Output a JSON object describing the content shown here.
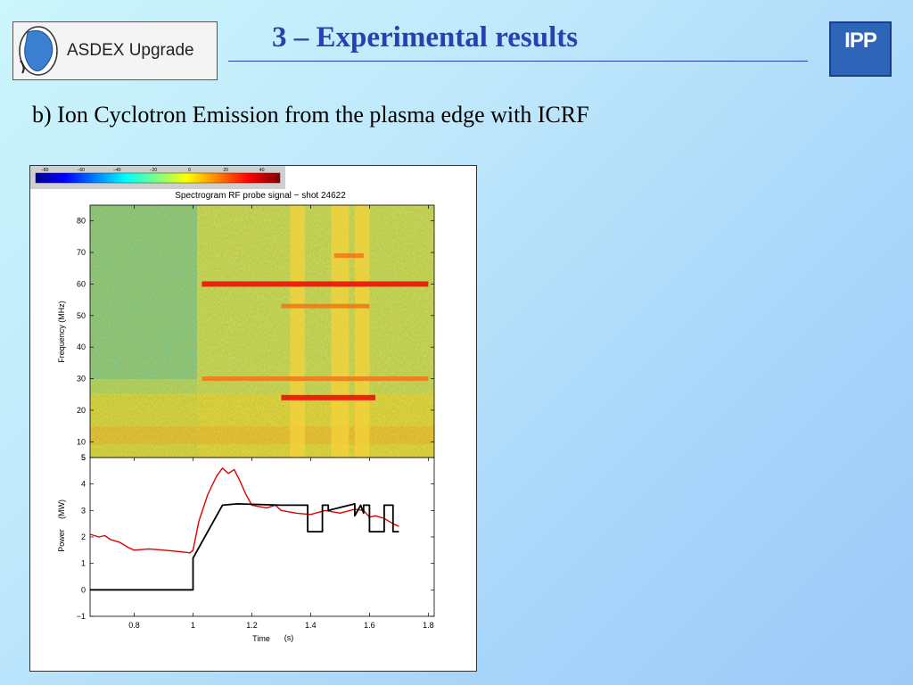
{
  "header": {
    "logo_left_text": "ASDEX Upgrade",
    "title": "3 – Experimental results",
    "logo_right_text": "IPP"
  },
  "subtitle": "b) Ion Cyclotron Emission from the plasma edge with ICRF",
  "colors": {
    "title": "#2a3fb0",
    "red_trace": "#e00000",
    "black_trace": "#000000"
  },
  "chart_data": [
    {
      "type": "heatmap",
      "title": "Spectrogram RF probe signal − shot 24622",
      "xlabel": "",
      "ylabel": "Frequency (MHz)",
      "ylim": [
        5,
        85
      ],
      "y_ticks": [
        "80",
        "70",
        "60",
        "50",
        "40",
        "30",
        "20",
        "10",
        "5"
      ],
      "colorbar_ticks": [
        "−80",
        "−60",
        "−40",
        "−20",
        "0",
        "20",
        "40"
      ],
      "colorbar_range": [
        -85,
        50
      ],
      "emission_lines_mhz": [
        {
          "freq": 60,
          "x_start": 1.03,
          "x_end": 1.8
        },
        {
          "freq": 30,
          "x_start": 1.03,
          "x_end": 1.8
        },
        {
          "freq": 24,
          "x_start": 1.3,
          "x_end": 1.62
        },
        {
          "freq": 53,
          "x_start": 1.3,
          "x_end": 1.6
        },
        {
          "freq": 69,
          "x_start": 1.48,
          "x_end": 1.58
        }
      ]
    },
    {
      "type": "line",
      "xlabel": "Time",
      "xlabel_unit": "(s)",
      "ylabel": "Power",
      "ylabel_unit": "(MW)",
      "xlim": [
        0.65,
        1.82
      ],
      "ylim": [
        -1,
        5
      ],
      "x_ticks": [
        "0.8",
        "1",
        "1.2",
        "1.4",
        "1.6",
        "1.8"
      ],
      "y_ticks": [
        "5",
        "4",
        "3",
        "2",
        "1",
        "0",
        "−1"
      ],
      "series": [
        {
          "color": "#e00000",
          "x": [
            0.65,
            0.68,
            0.7,
            0.72,
            0.75,
            0.78,
            0.8,
            0.85,
            0.9,
            0.95,
            0.99,
            1.0,
            1.02,
            1.05,
            1.08,
            1.1,
            1.12,
            1.14,
            1.16,
            1.18,
            1.2,
            1.25,
            1.28,
            1.3,
            1.35,
            1.4,
            1.45,
            1.5,
            1.55,
            1.58,
            1.6,
            1.62,
            1.65,
            1.68,
            1.7
          ],
          "y": [
            2.1,
            2.0,
            2.05,
            1.9,
            1.8,
            1.6,
            1.5,
            1.55,
            1.5,
            1.45,
            1.4,
            1.5,
            2.6,
            3.6,
            4.3,
            4.6,
            4.4,
            4.55,
            4.1,
            3.6,
            3.2,
            3.1,
            3.2,
            3.0,
            2.9,
            2.85,
            3.0,
            2.9,
            3.05,
            3.0,
            2.75,
            2.8,
            2.7,
            2.5,
            2.4
          ]
        },
        {
          "color": "#000000",
          "x": [
            0.65,
            1.0,
            1.0,
            1.05,
            1.1,
            1.15,
            1.3,
            1.39,
            1.39,
            1.44,
            1.44,
            1.46,
            1.46,
            1.55,
            1.55,
            1.57,
            1.58,
            1.58,
            1.6,
            1.6,
            1.65,
            1.65,
            1.68,
            1.68,
            1.7
          ],
          "y": [
            0,
            0,
            1.2,
            2.2,
            3.2,
            3.25,
            3.2,
            3.2,
            2.2,
            2.2,
            3.2,
            3.2,
            3.0,
            3.25,
            2.8,
            3.2,
            2.9,
            3.2,
            3.2,
            2.2,
            2.2,
            3.2,
            3.2,
            2.2,
            2.2
          ]
        }
      ]
    }
  ]
}
